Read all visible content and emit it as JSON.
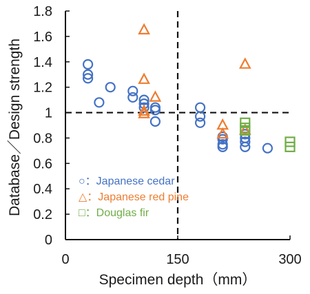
{
  "chart_data": {
    "type": "scatter",
    "xlabel": "Specimen depth（mm）",
    "ylabel": "Database／Design strength",
    "xlim": [
      0,
      300
    ],
    "ylim": [
      0,
      1.8
    ],
    "x_ticks": [
      0,
      150,
      300
    ],
    "x_tick_labels": [
      "0",
      "150",
      "300"
    ],
    "y_ticks": [
      0,
      0.2,
      0.4,
      0.6,
      0.8,
      1,
      1.2,
      1.4,
      1.6,
      1.8
    ],
    "y_tick_labels": [
      "0",
      "0.2",
      "0.4",
      "0.6",
      "0.8",
      "1",
      "1.2",
      "1.4",
      "1.6",
      "1.8"
    ],
    "reference_lines": [
      {
        "orientation": "vertical",
        "value": 150,
        "style": "dashed"
      },
      {
        "orientation": "horizontal",
        "value": 1,
        "style": "dashed"
      }
    ],
    "legend_position": "lower-left",
    "series": [
      {
        "name": "Japanese cedar",
        "legend_label": "○：Japanese cedar",
        "marker": "circle",
        "color": "#4472C4",
        "points": [
          [
            30,
            1.38
          ],
          [
            30,
            1.3
          ],
          [
            30,
            1.27
          ],
          [
            45,
            1.08
          ],
          [
            60,
            1.2
          ],
          [
            90,
            1.17
          ],
          [
            90,
            1.12
          ],
          [
            105,
            1.1
          ],
          [
            105,
            1.07
          ],
          [
            105,
            1.04
          ],
          [
            120,
            1.04
          ],
          [
            120,
            1.02
          ],
          [
            120,
            0.93
          ],
          [
            180,
            1.04
          ],
          [
            180,
            0.97
          ],
          [
            180,
            0.92
          ],
          [
            210,
            0.81
          ],
          [
            210,
            0.79
          ],
          [
            210,
            0.75
          ],
          [
            210,
            0.73
          ],
          [
            240,
            0.83
          ],
          [
            240,
            0.8
          ],
          [
            240,
            0.77
          ],
          [
            240,
            0.73
          ],
          [
            270,
            0.72
          ]
        ]
      },
      {
        "name": "Japanese red pine",
        "legend_label": "△：Japanese red pine",
        "marker": "triangle",
        "color": "#ED7D31",
        "points": [
          [
            105,
            1.65
          ],
          [
            105,
            1.26
          ],
          [
            105,
            1.01
          ],
          [
            105,
            0.99
          ],
          [
            120,
            1.12
          ],
          [
            210,
            0.9
          ],
          [
            210,
            0.83
          ],
          [
            240,
            1.38
          ],
          [
            240,
            0.86
          ]
        ]
      },
      {
        "name": "Douglas fir",
        "legend_label": "□：Douglas fir",
        "marker": "square",
        "color": "#70AD47",
        "points": [
          [
            240,
            0.92
          ],
          [
            240,
            0.88
          ],
          [
            240,
            0.86
          ],
          [
            300,
            0.77
          ],
          [
            300,
            0.73
          ]
        ]
      }
    ]
  }
}
